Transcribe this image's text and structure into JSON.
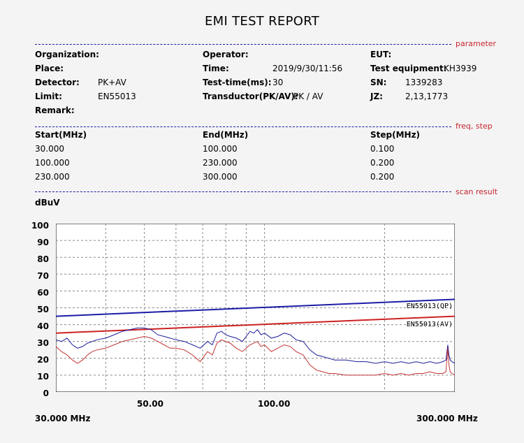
{
  "title": "EMI TEST REPORT",
  "sections": {
    "parameter": "parameter",
    "freq_step": "freq, step",
    "scan_result": "scan result"
  },
  "params": {
    "organization_label": "Organization:",
    "organization_value": "",
    "operator_label": "Operator:",
    "operator_value": "",
    "eut_label": "EUT:",
    "eut_value": "",
    "place_label": "Place:",
    "place_value": "",
    "time_label": "Time:",
    "time_value": "2019/9/30/11:56",
    "test_equipment_label": "Test equipment:",
    "test_equipment_value": "KH3939",
    "detector_label": "Detector:",
    "detector_value": "PK+AV",
    "test_time_label": "Test-time(ms):",
    "test_time_value": "30",
    "sn_label": "SN:",
    "sn_value": "1339283",
    "limit_label": "Limit:",
    "limit_value": "EN55013",
    "transductor_label": "Transductor(PK/AV):",
    "transductor_value": "PK  /  AV",
    "jz_label": "JZ:",
    "jz_value": "2,13,1773",
    "remark_label": "Remark:",
    "remark_value": ""
  },
  "freq_table": {
    "headers": [
      "Start(MHz)",
      "End(MHz)",
      "Step(MHz)"
    ],
    "rows": [
      [
        "30.000",
        "100.000",
        "0.100"
      ],
      [
        "100.000",
        "230.000",
        "0.200"
      ],
      [
        "230.000",
        "300.000",
        "0.200"
      ]
    ]
  },
  "chart_data": {
    "type": "line",
    "ylabel": "dBuV",
    "ylim": [
      0,
      100
    ],
    "y_ticks": [
      "100",
      "90",
      "80",
      "70",
      "60",
      "50",
      "40",
      "30",
      "20",
      "10",
      "0"
    ],
    "xlim": [
      30,
      300
    ],
    "x_scale": "log",
    "x_tick_labels": [
      "50.00",
      "100.00"
    ],
    "x_start_label": "30.000 MHz",
    "x_end_label": "300.000 MHz",
    "grid": true,
    "colors": {
      "qp_limit": "#1c1ca6",
      "av_limit": "#cc2222",
      "pk_trace": "#1c1c9a",
      "av_trace": "#c43232",
      "grid": "#8a8a8a"
    },
    "limit_lines": [
      {
        "name": "EN55013(QP)",
        "x": [
          30,
          300
        ],
        "y": [
          45,
          55
        ]
      },
      {
        "name": "EN55013(AV)",
        "x": [
          30,
          300
        ],
        "y": [
          35,
          45
        ]
      }
    ],
    "series": [
      {
        "x": [
          30,
          31,
          32,
          33,
          34,
          35,
          36,
          37,
          38,
          40,
          42,
          44,
          46,
          48,
          50,
          52,
          54,
          56,
          58,
          60,
          63,
          66,
          69,
          72,
          74,
          76,
          78,
          80,
          82,
          85,
          88,
          90,
          92,
          94,
          96,
          98,
          100,
          104,
          108,
          112,
          116,
          120,
          125,
          130,
          135,
          140,
          145,
          150,
          160,
          170,
          180,
          190,
          200,
          210,
          220,
          230,
          240,
          250,
          260,
          270,
          280,
          285,
          288,
          290,
          292,
          295,
          300
        ],
        "y": [
          31,
          30,
          32,
          28,
          26,
          27,
          29,
          30,
          31,
          32,
          34,
          36,
          37,
          38,
          38,
          37,
          34,
          33,
          32,
          31,
          30,
          28,
          26,
          30,
          28,
          35,
          36,
          34,
          33,
          32,
          30,
          33,
          36,
          35,
          37,
          34,
          35,
          32,
          33,
          35,
          34,
          31,
          30,
          25,
          22,
          21,
          20,
          19,
          19,
          18,
          18,
          17,
          18,
          17,
          18,
          17,
          18,
          17,
          18,
          17,
          18,
          19,
          28,
          22,
          19,
          18,
          17
        ]
      },
      {
        "x": [
          30,
          31,
          32,
          33,
          34,
          35,
          36,
          37,
          38,
          40,
          42,
          44,
          46,
          48,
          50,
          52,
          54,
          56,
          58,
          60,
          63,
          66,
          69,
          72,
          74,
          76,
          78,
          80,
          82,
          85,
          88,
          90,
          92,
          94,
          96,
          98,
          100,
          104,
          108,
          112,
          116,
          120,
          125,
          130,
          135,
          140,
          145,
          150,
          160,
          170,
          180,
          190,
          200,
          210,
          220,
          230,
          240,
          250,
          260,
          270,
          280,
          285,
          288,
          290,
          292,
          295,
          300
        ],
        "y": [
          27,
          24,
          22,
          19,
          17,
          19,
          22,
          24,
          25,
          26,
          28,
          30,
          31,
          32,
          33,
          32,
          30,
          28,
          26,
          26,
          25,
          22,
          18,
          24,
          22,
          29,
          31,
          30,
          29,
          26,
          24,
          26,
          28,
          29,
          30,
          27,
          28,
          24,
          26,
          28,
          27,
          24,
          22,
          16,
          13,
          12,
          11,
          11,
          10,
          10,
          10,
          10,
          11,
          10,
          11,
          10,
          11,
          11,
          12,
          11,
          11,
          12,
          26,
          16,
          12,
          11,
          10
        ]
      }
    ]
  }
}
